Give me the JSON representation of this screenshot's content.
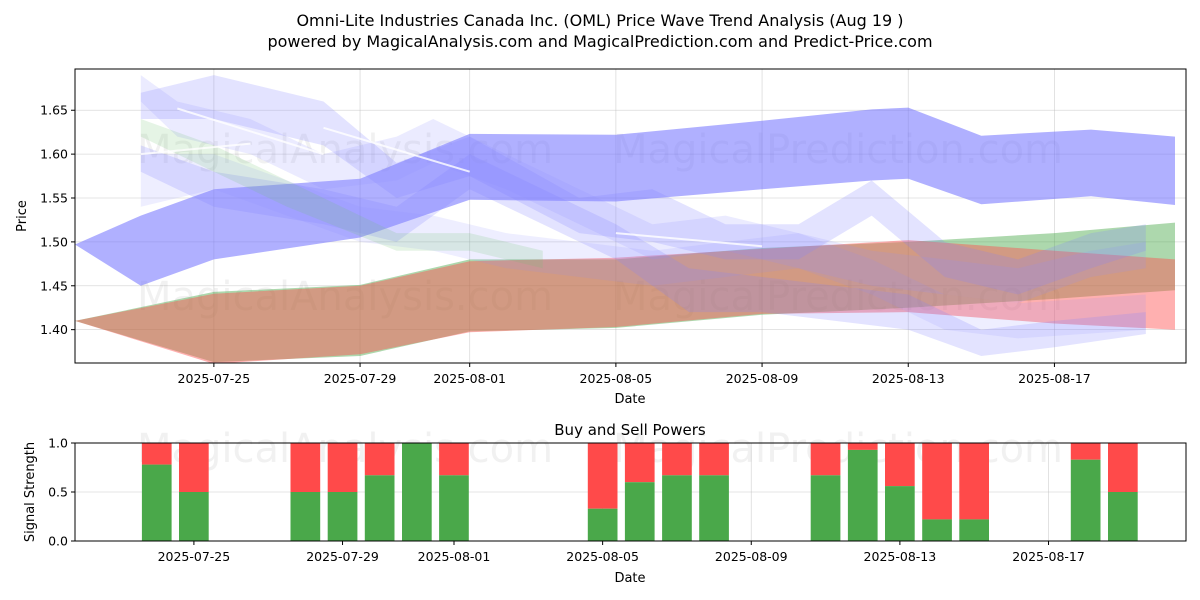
{
  "chart_data": [
    {
      "type": "area",
      "title_line1": "Omni-Lite Industries Canada Inc. (OML) Price Wave Trend Analysis (Aug 19 )",
      "title_line2": "powered by MagicalAnalysis.com and MagicalPrediction.com and Predict-Price.com",
      "xlabel": "Date",
      "ylabel": "Price",
      "xlim": [
        -0.8,
        29.6
      ],
      "ylim": [
        1.362,
        1.697
      ],
      "yticks": [
        "1.40",
        "1.45",
        "1.50",
        "1.55",
        "1.60",
        "1.65"
      ],
      "xticks": [
        {
          "i": 3,
          "label": "2025-07-25"
        },
        {
          "i": 7,
          "label": "2025-07-29"
        },
        {
          "i": 10,
          "label": "2025-08-01"
        },
        {
          "i": 14,
          "label": "2025-08-05"
        },
        {
          "i": 18,
          "label": "2025-08-09"
        },
        {
          "i": 22,
          "label": "2025-08-13"
        },
        {
          "i": 26,
          "label": "2025-08-17"
        }
      ],
      "watermarks": [
        "MagicalAnalysis.com",
        "MagicalPrediction.com",
        "MagicalAnalysis.com",
        "MagicalPrediction.com"
      ],
      "trend_bands": [
        {
          "name": "blue-main",
          "color": "#7070ff",
          "opacity": 0.55,
          "x": [
            -0.8,
            1,
            3,
            7,
            10,
            14,
            18,
            21,
            22,
            24,
            27,
            29.3
          ],
          "upper": [
            1.497,
            1.53,
            1.56,
            1.572,
            1.623,
            1.622,
            1.638,
            1.651,
            1.653,
            1.621,
            1.628,
            1.62
          ],
          "lower": [
            1.497,
            1.45,
            1.48,
            1.505,
            1.548,
            1.546,
            1.56,
            1.57,
            1.572,
            1.543,
            1.552,
            1.542
          ]
        },
        {
          "name": "green",
          "color": "#4aa84a",
          "opacity": 0.45,
          "x": [
            -0.8,
            3,
            7,
            10,
            14,
            18,
            22,
            26,
            29.3
          ],
          "upper": [
            1.41,
            1.443,
            1.451,
            1.48,
            1.48,
            1.493,
            1.5,
            1.51,
            1.522
          ],
          "lower": [
            1.41,
            1.363,
            1.37,
            1.398,
            1.402,
            1.417,
            1.425,
            1.435,
            1.445
          ]
        },
        {
          "name": "red",
          "color": "#ff5050",
          "opacity": 0.45,
          "x": [
            -0.8,
            3,
            7,
            10,
            14,
            18,
            22,
            26,
            29.3
          ],
          "upper": [
            1.41,
            1.441,
            1.45,
            1.478,
            1.482,
            1.492,
            1.502,
            1.49,
            1.48
          ],
          "lower": [
            1.41,
            1.361,
            1.372,
            1.397,
            1.403,
            1.418,
            1.42,
            1.407,
            1.4
          ]
        },
        {
          "name": "blue-light-1",
          "color": "#8080ff",
          "opacity": 0.22,
          "x": [
            1,
            3,
            6,
            8,
            10,
            13,
            15,
            17,
            19,
            21,
            23,
            25,
            27,
            28.5
          ],
          "upper": [
            1.67,
            1.69,
            1.66,
            1.59,
            1.62,
            1.55,
            1.56,
            1.52,
            1.52,
            1.57,
            1.5,
            1.48,
            1.51,
            1.52
          ],
          "lower": [
            1.64,
            1.64,
            1.61,
            1.55,
            1.575,
            1.51,
            1.5,
            1.48,
            1.48,
            1.53,
            1.46,
            1.44,
            1.47,
            1.49
          ]
        },
        {
          "name": "blue-light-2",
          "color": "#8080ff",
          "opacity": 0.22,
          "x": [
            1,
            3,
            6,
            8,
            10,
            12,
            14,
            16,
            18,
            20,
            22,
            24,
            26,
            28.5
          ],
          "upper": [
            1.61,
            1.58,
            1.56,
            1.54,
            1.6,
            1.56,
            1.52,
            1.47,
            1.46,
            1.45,
            1.44,
            1.4,
            1.41,
            1.42
          ],
          "lower": [
            1.58,
            1.54,
            1.52,
            1.5,
            1.56,
            1.52,
            1.48,
            1.42,
            1.42,
            1.41,
            1.4,
            1.37,
            1.38,
            1.395
          ]
        },
        {
          "name": "blue-light-3",
          "color": "#9090ff",
          "opacity": 0.18,
          "x": [
            1,
            2,
            4,
            6,
            8,
            9,
            11,
            13,
            15,
            17,
            19,
            21,
            23,
            25,
            27,
            28.5
          ],
          "upper": [
            1.69,
            1.66,
            1.64,
            1.6,
            1.62,
            1.64,
            1.6,
            1.56,
            1.52,
            1.53,
            1.51,
            1.49,
            1.48,
            1.47,
            1.49,
            1.5
          ],
          "lower": [
            1.66,
            1.62,
            1.6,
            1.56,
            1.57,
            1.59,
            1.56,
            1.52,
            1.48,
            1.49,
            1.47,
            1.45,
            1.44,
            1.43,
            1.46,
            1.47
          ]
        },
        {
          "name": "blue-light-4",
          "color": "#9090ff",
          "opacity": 0.15,
          "x": [
            1,
            3,
            5,
            7,
            9,
            11,
            13,
            15,
            17,
            19,
            21,
            23,
            25,
            28.5
          ],
          "upper": [
            1.6,
            1.6,
            1.57,
            1.54,
            1.53,
            1.51,
            1.5,
            1.49,
            1.5,
            1.51,
            1.48,
            1.44,
            1.43,
            1.44
          ],
          "lower": [
            1.54,
            1.56,
            1.53,
            1.5,
            1.49,
            1.47,
            1.46,
            1.45,
            1.46,
            1.47,
            1.44,
            1.4,
            1.39,
            1.4
          ]
        },
        {
          "name": "green-light",
          "color": "#70c070",
          "opacity": 0.18,
          "x": [
            1,
            3,
            5,
            8,
            10,
            12
          ],
          "upper": [
            1.64,
            1.61,
            1.57,
            1.51,
            1.51,
            1.49
          ],
          "lower": [
            1.62,
            1.58,
            1.54,
            1.49,
            1.49,
            1.47
          ]
        }
      ],
      "white_streaks": [
        {
          "x": [
            2,
            6
          ],
          "y": [
            1.652,
            1.6
          ]
        },
        {
          "x": [
            6,
            10
          ],
          "y": [
            1.63,
            1.58
          ]
        },
        {
          "x": [
            1,
            4
          ],
          "y": [
            1.6,
            1.612
          ]
        },
        {
          "x": [
            14,
            18
          ],
          "y": [
            1.51,
            1.495
          ]
        }
      ]
    },
    {
      "type": "bar",
      "title": "Buy and Sell Powers",
      "xlabel": "Date",
      "ylabel": "Signal Strength",
      "ylim": [
        0,
        1
      ],
      "yticks": [
        "0.0",
        "0.5",
        "1.0"
      ],
      "xlim": [
        -1.2,
        28.7
      ],
      "xticks": [
        {
          "i": 2,
          "label": "2025-07-25"
        },
        {
          "i": 6,
          "label": "2025-07-29"
        },
        {
          "i": 9,
          "label": "2025-08-01"
        },
        {
          "i": 13,
          "label": "2025-08-05"
        },
        {
          "i": 17,
          "label": "2025-08-09"
        },
        {
          "i": 21,
          "label": "2025-08-13"
        },
        {
          "i": 25,
          "label": "2025-08-17"
        }
      ],
      "series": [
        {
          "name": "Buy",
          "color": "#4aa84a"
        },
        {
          "name": "Sell",
          "color": "#ff4a4a"
        }
      ],
      "bars": [
        {
          "i": 1,
          "buy": 0.78
        },
        {
          "i": 2,
          "buy": 0.5
        },
        {
          "i": 5,
          "buy": 0.5
        },
        {
          "i": 6,
          "buy": 0.5
        },
        {
          "i": 7,
          "buy": 0.67
        },
        {
          "i": 8,
          "buy": 1.0
        },
        {
          "i": 9,
          "buy": 0.67
        },
        {
          "i": 13,
          "buy": 0.33
        },
        {
          "i": 14,
          "buy": 0.6
        },
        {
          "i": 15,
          "buy": 0.67
        },
        {
          "i": 16,
          "buy": 0.67
        },
        {
          "i": 19,
          "buy": 0.67
        },
        {
          "i": 20,
          "buy": 0.93
        },
        {
          "i": 21,
          "buy": 0.56
        },
        {
          "i": 22,
          "buy": 0.22
        },
        {
          "i": 23,
          "buy": 0.22
        },
        {
          "i": 26,
          "buy": 0.83
        },
        {
          "i": 27,
          "buy": 0.5
        }
      ],
      "watermarks": [
        "MagicalAnalysis.com",
        "MagicalPrediction.com"
      ]
    }
  ]
}
